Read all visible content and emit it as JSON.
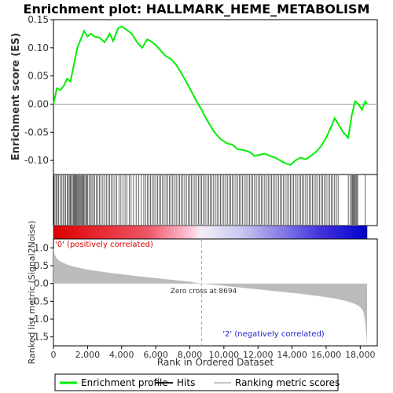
{
  "chart_data": {
    "type": "line",
    "title": "Enrichment plot: HALLMARK_HEME_METABOLISM",
    "panels": {
      "enrichment": {
        "ylabel": "Enrichment score (ES)",
        "ylim": [
          -0.125,
          0.15
        ],
        "yticks": [
          "0.15",
          "0.10",
          "0.05",
          "0.00",
          "-0.05",
          "-0.10"
        ],
        "series": [
          {
            "name": "Enrichment profile",
            "color": "#00ee00",
            "x": [
              0,
              200,
              400,
              600,
              800,
              1000,
              1200,
              1400,
              1600,
              1800,
              2000,
              2200,
              2400,
              2700,
              3000,
              3300,
              3500,
              3800,
              4000,
              4300,
              4600,
              4900,
              5200,
              5500,
              5700,
              6000,
              6300,
              6600,
              6900,
              7200,
              7600,
              8000,
              8400,
              8694,
              9000,
              9400,
              9800,
              10200,
              10500,
              10800,
              11200,
              11500,
              11800,
              12100,
              12400,
              12700,
              13000,
              13300,
              13600,
              13900,
              14200,
              14500,
              14800,
              15100,
              15400,
              15700,
              16000,
              16300,
              16500,
              16800,
              17000,
              17300,
              17500,
              17700,
              17900,
              18100,
              18300,
              18400
            ],
            "y": [
              0.0,
              0.028,
              0.025,
              0.032,
              0.045,
              0.04,
              0.07,
              0.1,
              0.115,
              0.13,
              0.12,
              0.125,
              0.12,
              0.118,
              0.11,
              0.125,
              0.112,
              0.135,
              0.138,
              0.132,
              0.125,
              0.11,
              0.1,
              0.115,
              0.112,
              0.105,
              0.095,
              0.085,
              0.08,
              0.07,
              0.05,
              0.028,
              0.005,
              -0.01,
              -0.028,
              -0.048,
              -0.062,
              -0.07,
              -0.072,
              -0.08,
              -0.082,
              -0.085,
              -0.092,
              -0.09,
              -0.088,
              -0.092,
              -0.095,
              -0.1,
              -0.105,
              -0.108,
              -0.1,
              -0.095,
              -0.098,
              -0.092,
              -0.085,
              -0.075,
              -0.06,
              -0.04,
              -0.025,
              -0.04,
              -0.05,
              -0.06,
              -0.02,
              0.005,
              0.0,
              -0.01,
              0.005,
              0.0
            ]
          }
        ]
      },
      "hits": {
        "series_name": "Hits",
        "positions": [
          30,
          90,
          160,
          230,
          310,
          390,
          470,
          560,
          640,
          720,
          800,
          870,
          930,
          990,
          1050,
          1110,
          1170,
          1220,
          1270,
          1320,
          1370,
          1420,
          1470,
          1520,
          1570,
          1620,
          1670,
          1720,
          1780,
          1840,
          1900,
          1960,
          2020,
          2100,
          2180,
          2260,
          2340,
          2430,
          2520,
          2610,
          2700,
          2800,
          2900,
          3000,
          3100,
          3200,
          3300,
          3400,
          3500,
          3600,
          3720,
          3840,
          3960,
          4080,
          4200,
          4320,
          4440,
          4560,
          4700,
          4850,
          5000,
          5150,
          5300,
          5400,
          5500,
          5600,
          5700,
          5800,
          5900,
          6000,
          6100,
          6200,
          6300,
          6400,
          6500,
          6600,
          6700,
          6800,
          6900,
          7000,
          7100,
          7200,
          7300,
          7400,
          7500,
          7600,
          7700,
          7800,
          7900,
          8000,
          8100,
          8200,
          8300,
          8400,
          8500,
          8600,
          8700,
          8800,
          8900,
          9000,
          9100,
          9200,
          9300,
          9400,
          9500,
          9600,
          9700,
          9800,
          9900,
          10000,
          10100,
          10200,
          10300,
          10400,
          10500,
          10600,
          10700,
          10800,
          10900,
          11000,
          11100,
          11200,
          11300,
          11400,
          11500,
          11600,
          11700,
          11800,
          11900,
          12000,
          12100,
          12200,
          12300,
          12400,
          12500,
          12600,
          12700,
          12800,
          12900,
          13000,
          13100,
          13200,
          13300,
          13400,
          13500,
          13600,
          13700,
          13800,
          13900,
          14000,
          14100,
          14200,
          14300,
          14400,
          14500,
          14600,
          14700,
          14800,
          14900,
          15000,
          15100,
          15200,
          15300,
          15400,
          15500,
          15600,
          15700,
          15800,
          15900,
          16000,
          16100,
          16200,
          16300,
          16400,
          16500,
          16600,
          16700,
          17300,
          17400,
          17500,
          17550,
          17600,
          17650,
          17700,
          17750,
          17800,
          17850,
          18300
        ]
      },
      "ranking": {
        "ylabel": "Ranked list metric (Signal2Noise)",
        "ylim": [
          -1.75,
          1.25
        ],
        "yticks": [
          "1.0",
          "0.5",
          "0.0",
          "-0.5",
          "-1.0",
          "-1.5"
        ],
        "series_name": "Ranking metric scores",
        "color": "#bbbbbb",
        "x": [
          0,
          50,
          100,
          200,
          400,
          700,
          1000,
          1500,
          2000,
          3000,
          4000,
          5000,
          6000,
          7000,
          8000,
          8694,
          9500,
          10500,
          11500,
          12500,
          13500,
          14500,
          15500,
          16500,
          17000,
          17500,
          17800,
          18000,
          18100,
          18200,
          18250,
          18300,
          18350,
          18400
        ],
        "y": [
          1.0,
          0.85,
          0.78,
          0.7,
          0.62,
          0.55,
          0.5,
          0.44,
          0.39,
          0.32,
          0.26,
          0.2,
          0.15,
          0.1,
          0.05,
          0.0,
          -0.04,
          -0.09,
          -0.14,
          -0.19,
          -0.24,
          -0.29,
          -0.35,
          -0.42,
          -0.47,
          -0.54,
          -0.6,
          -0.66,
          -0.72,
          -0.82,
          -0.95,
          -1.1,
          -1.4,
          -1.7
        ]
      }
    },
    "xlabel": "Rank in Ordered Dataset",
    "xlim": [
      0,
      19000
    ],
    "xticks": [
      "0",
      "2,000",
      "4,000",
      "6,000",
      "8,000",
      "10,000",
      "12,000",
      "14,000",
      "16,000",
      "18,000"
    ],
    "zero_cross_rank": 8694,
    "annotations": {
      "zero_cross": "Zero cross at 8694",
      "positive": "'0' (positively correlated)",
      "negative": "'2' (negatively correlated)"
    },
    "colors": {
      "positive": "#dd0000",
      "negative": "#0000cc",
      "profile": "#00ee00",
      "hits": "#000000",
      "metric": "#bbbbbb",
      "label_positive": "#dd0000",
      "label_negative": "#2222cc"
    },
    "legend": {
      "placement": "bottom",
      "items": [
        {
          "label": "Enrichment profile",
          "color": "#00ee00",
          "icon": "green-line"
        },
        {
          "label": "Hits",
          "color": "#000000",
          "icon": "black-line"
        },
        {
          "label": "Ranking metric scores",
          "color": "#bbbbbb",
          "icon": "gray-line"
        }
      ]
    },
    "grid": false
  }
}
